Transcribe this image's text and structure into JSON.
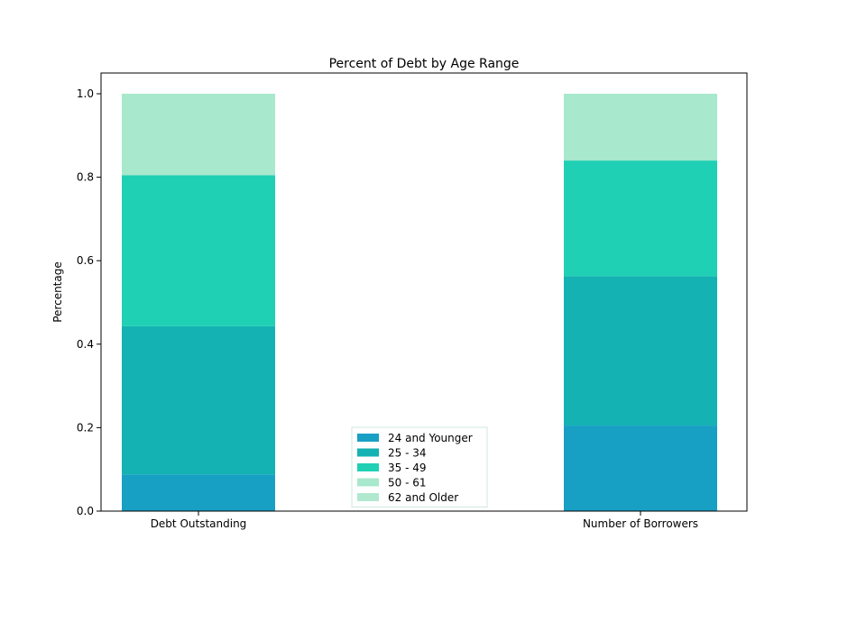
{
  "chart_data": {
    "type": "bar",
    "stacked": true,
    "title": "Percent of Debt by Age Range",
    "xlabel": "",
    "ylabel": "Percentage",
    "ylim": [
      0,
      1.0
    ],
    "yticks": [
      "0.0",
      "0.2",
      "0.4",
      "0.6",
      "0.8",
      "1.0"
    ],
    "categories": [
      "Debt Outstanding",
      "Number of Borrowers"
    ],
    "series": [
      {
        "name": "24 and Younger",
        "values": [
          0.088,
          0.205
        ],
        "color": "#17a0c4"
      },
      {
        "name": "25 - 34",
        "values": [
          0.355,
          0.358
        ],
        "color": "#14b2b2"
      },
      {
        "name": "35 - 49",
        "values": [
          0.362,
          0.277
        ],
        "color": "#20d0b4"
      },
      {
        "name": "50 - 61",
        "values": [
          0.195,
          0.16
        ],
        "color": "#a8e8cc"
      },
      {
        "name": "62 and Older",
        "values": [
          0.0,
          0.0
        ],
        "color": "#b0e8d0"
      }
    ],
    "legend_position": "bottom-center",
    "grid": false
  }
}
